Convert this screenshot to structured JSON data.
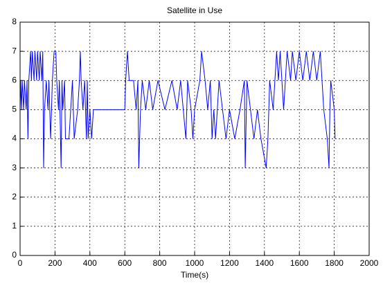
{
  "chart_data": {
    "type": "line",
    "title": "Satellite in Use",
    "x_label": "Time(s)",
    "x": [
      0,
      3,
      8,
      12,
      20,
      25,
      35,
      40,
      45,
      50,
      60,
      65,
      70,
      80,
      85,
      95,
      100,
      110,
      115,
      125,
      130,
      135,
      140,
      150,
      160,
      165,
      175,
      185,
      195,
      205,
      210,
      220,
      225,
      235,
      240,
      245,
      255,
      260,
      280,
      290,
      300,
      310,
      330,
      340,
      345,
      350,
      360,
      370,
      380,
      385,
      390,
      400,
      410,
      420,
      480,
      600,
      605,
      615,
      625,
      650,
      665,
      675,
      680,
      690,
      700,
      720,
      740,
      760,
      790,
      830,
      870,
      900,
      920,
      950,
      960,
      980,
      990,
      1000,
      1030,
      1040,
      1060,
      1075,
      1090,
      1100,
      1110,
      1120,
      1140,
      1160,
      1180,
      1200,
      1230,
      1260,
      1285,
      1290,
      1300,
      1320,
      1340,
      1360,
      1380,
      1410,
      1420,
      1430,
      1450,
      1460,
      1470,
      1480,
      1490,
      1500,
      1510,
      1520,
      1530,
      1550,
      1560,
      1580,
      1600,
      1620,
      1640,
      1660,
      1680,
      1700,
      1720,
      1740,
      1760,
      1770,
      1775,
      1780,
      1800,
      1805
    ],
    "series": [
      {
        "color": "#0000ff",
        "values": [
          5,
          6,
          5,
          6,
          5,
          6,
          5,
          6,
          4,
          6,
          7,
          6,
          7,
          6,
          7,
          6,
          7,
          6,
          7,
          6,
          7,
          3,
          5,
          6,
          5,
          6,
          4,
          6,
          7,
          7,
          6,
          5,
          6,
          3,
          6,
          5,
          6,
          4,
          4,
          5,
          6,
          4,
          5,
          6,
          7,
          6,
          5,
          6,
          4,
          6,
          4,
          5,
          4,
          5,
          5,
          5,
          6,
          7,
          6,
          6,
          5,
          6,
          3,
          5,
          6,
          5,
          6,
          5,
          6,
          5,
          6,
          5,
          6,
          4,
          6,
          5,
          4,
          5,
          6,
          7,
          6,
          5,
          6,
          4,
          5,
          4,
          6,
          5,
          4,
          5,
          4,
          5,
          6,
          3,
          6,
          5,
          4,
          5,
          4,
          3,
          4,
          6,
          5,
          6,
          7,
          6,
          7,
          6,
          5,
          6,
          7,
          6,
          7,
          6,
          7,
          6,
          7,
          6,
          7,
          6,
          7,
          5,
          4,
          3,
          5,
          6,
          5,
          4
        ]
      }
    ],
    "xlim": [
      0,
      2000
    ],
    "ylim": [
      0,
      8
    ],
    "xticks": [
      0,
      200,
      400,
      600,
      800,
      1000,
      1200,
      1400,
      1600,
      1800,
      2000
    ],
    "yticks": [
      0,
      1,
      2,
      3,
      4,
      5,
      6,
      7,
      8
    ],
    "grid": true
  }
}
